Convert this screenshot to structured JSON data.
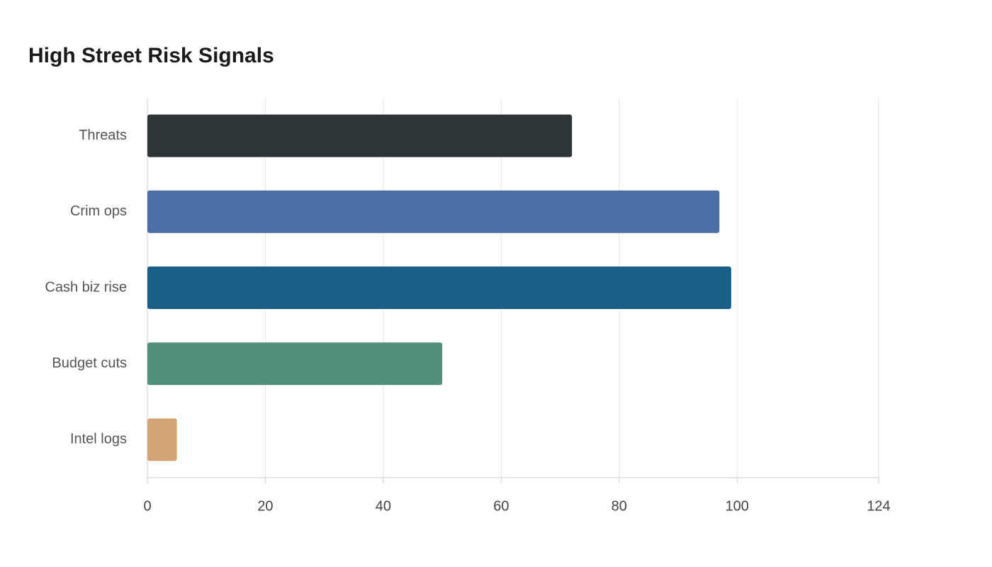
{
  "chart_data": {
    "type": "bar",
    "orientation": "horizontal",
    "title": "High Street Risk Signals",
    "categories": [
      "Threats",
      "Crim ops",
      "Cash biz rise",
      "Budget cuts",
      "Intel logs"
    ],
    "values": [
      72,
      97,
      99,
      50,
      5
    ],
    "colors": [
      "#2e3538",
      "#4a6fa5",
      "#1a5f87",
      "#4f8f7c",
      "#d4a574"
    ],
    "xlim": [
      0,
      124
    ],
    "xticks": [
      0,
      20,
      40,
      60,
      80,
      100,
      124
    ],
    "grid": true
  }
}
